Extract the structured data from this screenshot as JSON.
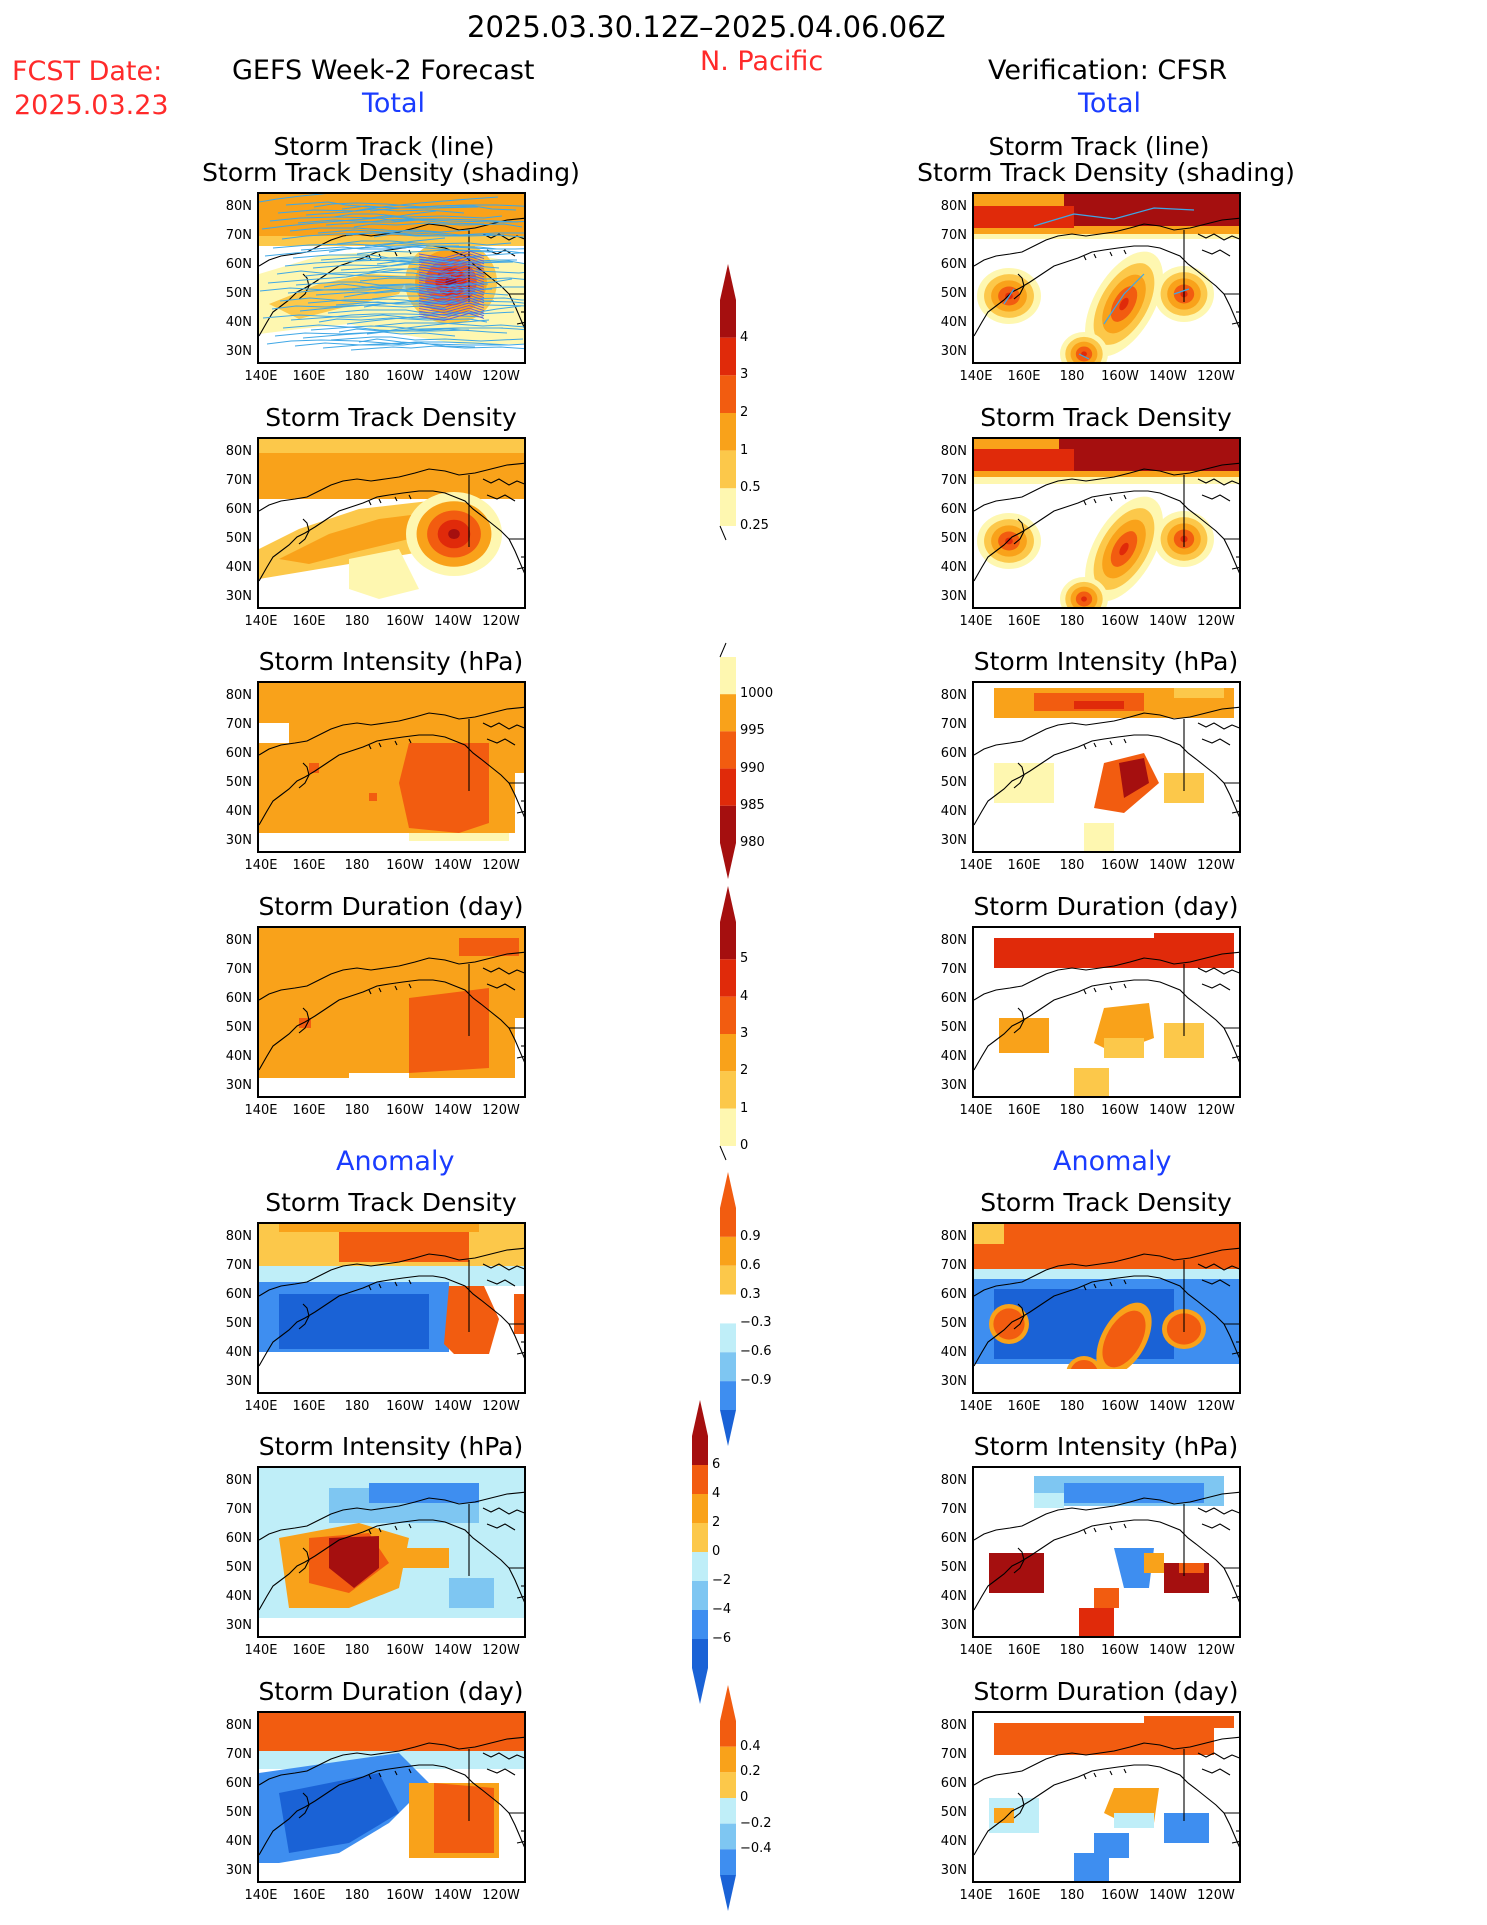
{
  "header": {
    "period": "2025.03.30.12Z–2025.04.06.06Z",
    "region": "N. Pacific",
    "fcst_label": "FCST Date:",
    "fcst_date": "2025.03.23",
    "left_title": "GEFS Week-2 Forecast",
    "right_title": "Verification: CFSR",
    "total_label": "Total",
    "anomaly_label": "Anomaly"
  },
  "axes": {
    "lat_labels": [
      "80N",
      "70N",
      "60N",
      "50N",
      "40N",
      "30N"
    ],
    "lon_labels": [
      "140E",
      "160E",
      "180",
      "160W",
      "140W",
      "120W"
    ]
  },
  "panels": {
    "p1": {
      "title_line1": "Storm Track (line)",
      "title_line2": "Storm Track Density (shading)"
    },
    "p2": {
      "title": "Storm Track Density"
    },
    "p3": {
      "title": "Storm Intensity (hPa)"
    },
    "p4": {
      "title": "Storm Duration (day)"
    },
    "p5": {
      "title": "Storm Track Density"
    },
    "p6": {
      "title": "Storm Intensity (hPa)"
    },
    "p7": {
      "title": "Storm Duration (day)"
    }
  },
  "colorbars": {
    "density": [
      "4",
      "3",
      "2",
      "1",
      "0.5",
      "0.25"
    ],
    "intensity": [
      "1000",
      "995",
      "990",
      "985",
      "980"
    ],
    "duration": [
      "5",
      "4",
      "3",
      "2",
      "1",
      "0"
    ],
    "density_anom": [
      "0.9",
      "0.6",
      "0.3",
      "−0.3",
      "−0.6",
      "−0.9"
    ],
    "intensity_anom": [
      "6",
      "4",
      "2",
      "0",
      "−2",
      "−4",
      "−6"
    ],
    "duration_anom": [
      "0.4",
      "0.2",
      "0",
      "−0.2",
      "−0.4"
    ]
  },
  "colors": {
    "title_red": "#ff2a2a",
    "title_blue": "#1a3cff",
    "track_line": "#3fa7e6",
    "dark_red": "#a50f0f",
    "red": "#e02a0a",
    "orange_red": "#f25c10",
    "orange": "#f9a21a",
    "light_orange": "#fcc84a",
    "pale_yellow": "#fef7b0",
    "light_blue": "#bfeef8",
    "mid_blue": "#7ec6f2",
    "blue": "#3e8ef0",
    "deep_blue": "#1a62d6"
  }
}
